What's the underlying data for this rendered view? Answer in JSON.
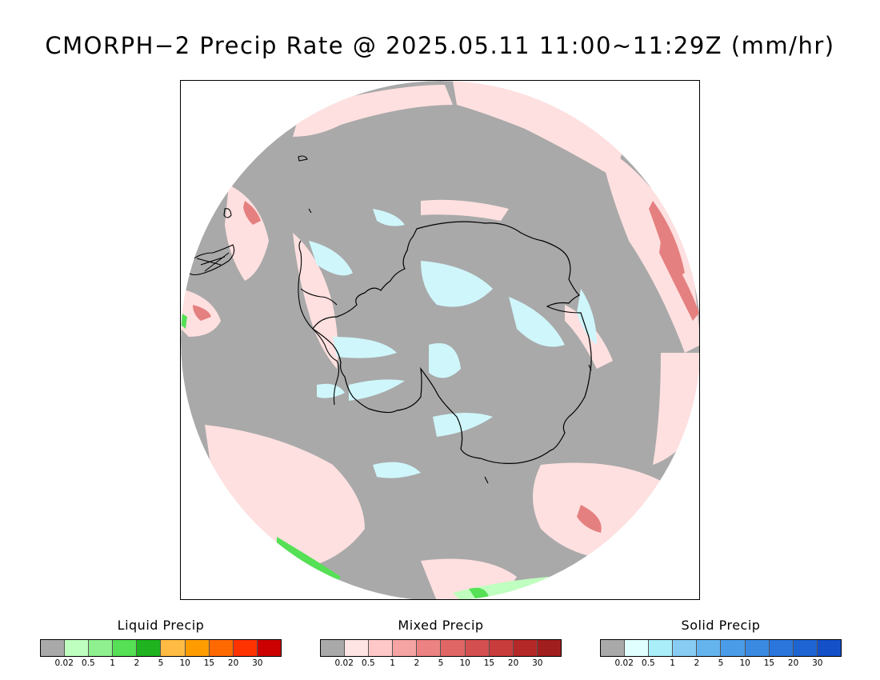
{
  "title": "CMORPH−2 Precip Rate @ 2025.05.11 11:00~11:29Z (mm/hr)",
  "map": {
    "projection": "south-polar-stereographic",
    "background_color": "#a9a9a9",
    "coastline_color": "#000000"
  },
  "legends": [
    {
      "id": "liquid",
      "title": "Liquid Precip",
      "ticks": [
        "0.02",
        "0.5",
        "1",
        "2",
        "5",
        "10",
        "15",
        "20",
        "30"
      ],
      "colors": [
        "#a9a9a9",
        "#bfffbf",
        "#8ef08e",
        "#55e055",
        "#1fb41f",
        "#ffbb44",
        "#ff9d00",
        "#ff6a00",
        "#ff3300",
        "#cc0000"
      ]
    },
    {
      "id": "mixed",
      "title": "Mixed Precip",
      "ticks": [
        "0.02",
        "0.5",
        "1",
        "2",
        "5",
        "10",
        "15",
        "20",
        "30"
      ],
      "colors": [
        "#a9a9a9",
        "#ffe4e4",
        "#ffc8c8",
        "#f5a3a3",
        "#ec8282",
        "#e06666",
        "#d45050",
        "#c83c3c",
        "#b52828",
        "#a01e1e"
      ]
    },
    {
      "id": "solid",
      "title": "Solid Precip",
      "ticks": [
        "0.02",
        "0.5",
        "1",
        "2",
        "5",
        "10",
        "15",
        "20",
        "30"
      ],
      "colors": [
        "#a9a9a9",
        "#e0ffff",
        "#aaeefa",
        "#88ccf4",
        "#66b4ee",
        "#4a9ce8",
        "#3a8ae2",
        "#2a76dc",
        "#1e64d2",
        "#1450c8"
      ]
    }
  ]
}
